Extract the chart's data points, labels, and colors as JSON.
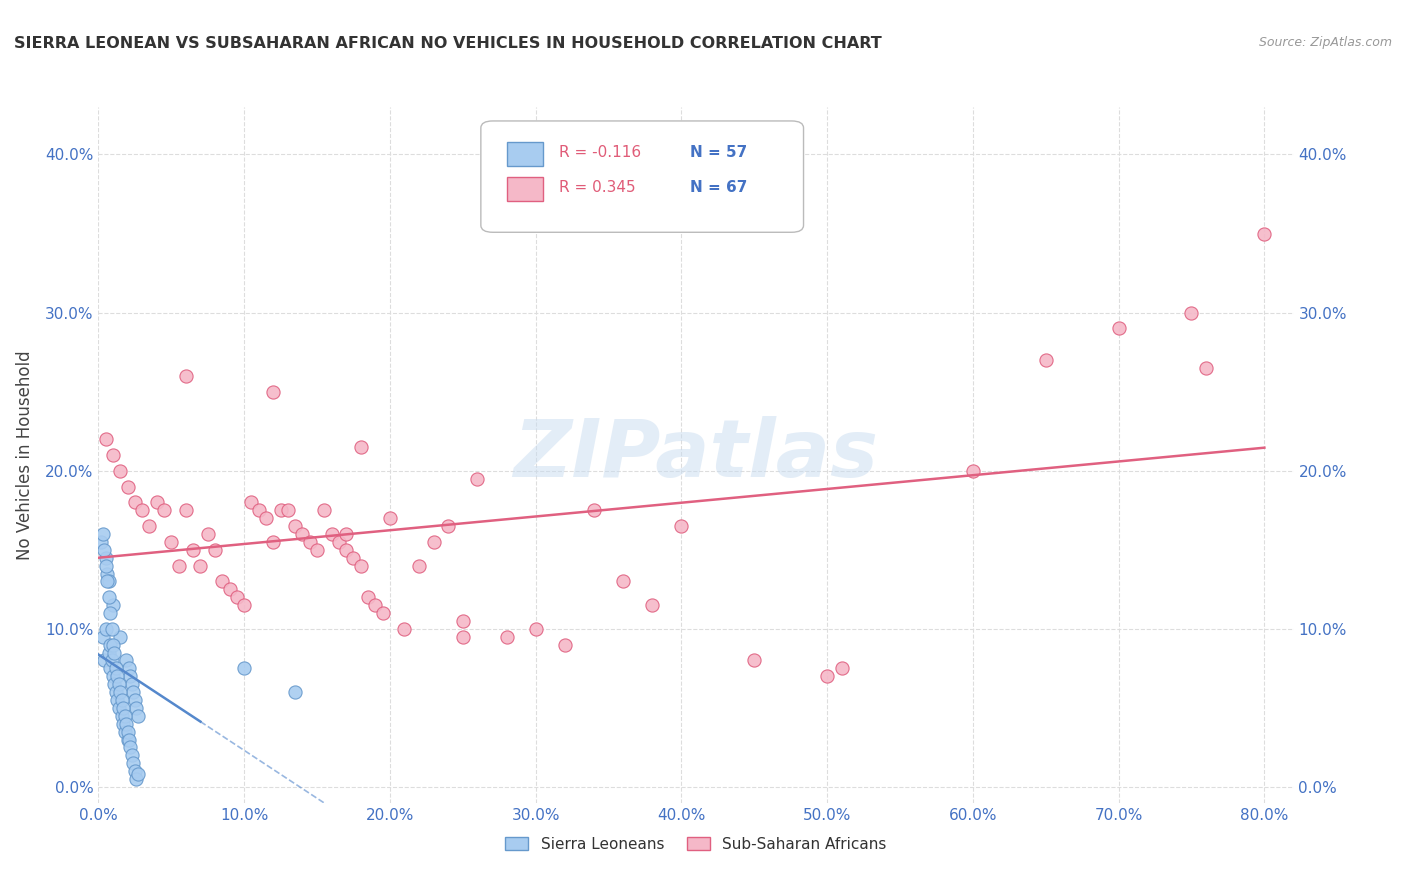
{
  "title": "SIERRA LEONEAN VS SUBSAHARAN AFRICAN NO VEHICLES IN HOUSEHOLD CORRELATION CHART",
  "source": "Source: ZipAtlas.com",
  "ylabel": "No Vehicles in Household",
  "xlim": [
    0.0,
    0.82
  ],
  "ylim": [
    -0.01,
    0.43
  ],
  "x_ticks": [
    0.0,
    0.1,
    0.2,
    0.3,
    0.4,
    0.5,
    0.6,
    0.7,
    0.8
  ],
  "y_ticks": [
    0.0,
    0.1,
    0.2,
    0.3,
    0.4
  ],
  "x_tick_labels": [
    "0.0%",
    "10.0%",
    "20.0%",
    "30.0%",
    "40.0%",
    "50.0%",
    "60.0%",
    "70.0%",
    "80.0%"
  ],
  "y_tick_labels": [
    "0.0%",
    "10.0%",
    "20.0%",
    "30.0%",
    "40.0%"
  ],
  "legend_label_blue": "Sierra Leoneans",
  "legend_label_pink": "Sub-Saharan Africans",
  "legend_r_blue": "R = -0.116",
  "legend_n_blue": "N = 57",
  "legend_r_pink": "R = 0.345",
  "legend_n_pink": "N = 67",
  "color_blue_fill": "#A8CCF0",
  "color_blue_edge": "#6699CC",
  "color_pink_fill": "#F5B8C8",
  "color_pink_edge": "#E06080",
  "color_blue_line": "#5588CC",
  "color_pink_line": "#E06080",
  "color_blue_text": "#4472C4",
  "color_pink_text": "#E05C78",
  "watermark": "ZIPatlas",
  "grid_color": "#DDDDDD",
  "background_color": "#FFFFFF",
  "sierra_x": [
    0.002,
    0.003,
    0.004,
    0.005,
    0.005,
    0.006,
    0.007,
    0.007,
    0.008,
    0.008,
    0.009,
    0.01,
    0.01,
    0.011,
    0.012,
    0.013,
    0.014,
    0.015,
    0.016,
    0.017,
    0.018,
    0.019,
    0.02,
    0.021,
    0.022,
    0.023,
    0.024,
    0.025,
    0.026,
    0.027,
    0.003,
    0.004,
    0.005,
    0.006,
    0.007,
    0.008,
    0.009,
    0.01,
    0.011,
    0.012,
    0.013,
    0.014,
    0.015,
    0.016,
    0.017,
    0.018,
    0.019,
    0.02,
    0.021,
    0.022,
    0.023,
    0.024,
    0.025,
    0.026,
    0.027,
    0.1,
    0.135
  ],
  "sierra_y": [
    0.155,
    0.095,
    0.08,
    0.1,
    0.145,
    0.135,
    0.13,
    0.085,
    0.09,
    0.075,
    0.08,
    0.07,
    0.115,
    0.065,
    0.06,
    0.055,
    0.05,
    0.095,
    0.045,
    0.04,
    0.035,
    0.08,
    0.03,
    0.075,
    0.07,
    0.065,
    0.06,
    0.055,
    0.05,
    0.045,
    0.16,
    0.15,
    0.14,
    0.13,
    0.12,
    0.11,
    0.1,
    0.09,
    0.085,
    0.075,
    0.07,
    0.065,
    0.06,
    0.055,
    0.05,
    0.045,
    0.04,
    0.035,
    0.03,
    0.025,
    0.02,
    0.015,
    0.01,
    0.005,
    0.008,
    0.075,
    0.06
  ],
  "subsaharan_x": [
    0.005,
    0.01,
    0.015,
    0.02,
    0.025,
    0.03,
    0.035,
    0.04,
    0.045,
    0.05,
    0.055,
    0.06,
    0.065,
    0.07,
    0.075,
    0.08,
    0.085,
    0.09,
    0.095,
    0.1,
    0.105,
    0.11,
    0.115,
    0.12,
    0.125,
    0.13,
    0.135,
    0.14,
    0.145,
    0.15,
    0.155,
    0.16,
    0.165,
    0.17,
    0.175,
    0.18,
    0.185,
    0.19,
    0.195,
    0.2,
    0.21,
    0.22,
    0.23,
    0.24,
    0.25,
    0.26,
    0.28,
    0.3,
    0.32,
    0.34,
    0.36,
    0.38,
    0.4,
    0.45,
    0.5,
    0.51,
    0.6,
    0.65,
    0.7,
    0.75,
    0.76,
    0.8,
    0.17,
    0.18,
    0.06,
    0.25,
    0.12
  ],
  "subsaharan_y": [
    0.22,
    0.21,
    0.2,
    0.19,
    0.18,
    0.175,
    0.165,
    0.18,
    0.175,
    0.155,
    0.14,
    0.175,
    0.15,
    0.14,
    0.16,
    0.15,
    0.13,
    0.125,
    0.12,
    0.115,
    0.18,
    0.175,
    0.17,
    0.155,
    0.175,
    0.175,
    0.165,
    0.16,
    0.155,
    0.15,
    0.175,
    0.16,
    0.155,
    0.15,
    0.145,
    0.14,
    0.12,
    0.115,
    0.11,
    0.17,
    0.1,
    0.14,
    0.155,
    0.165,
    0.105,
    0.195,
    0.095,
    0.1,
    0.09,
    0.175,
    0.13,
    0.115,
    0.165,
    0.08,
    0.07,
    0.075,
    0.2,
    0.27,
    0.29,
    0.3,
    0.265,
    0.35,
    0.16,
    0.215,
    0.26,
    0.095,
    0.25
  ]
}
